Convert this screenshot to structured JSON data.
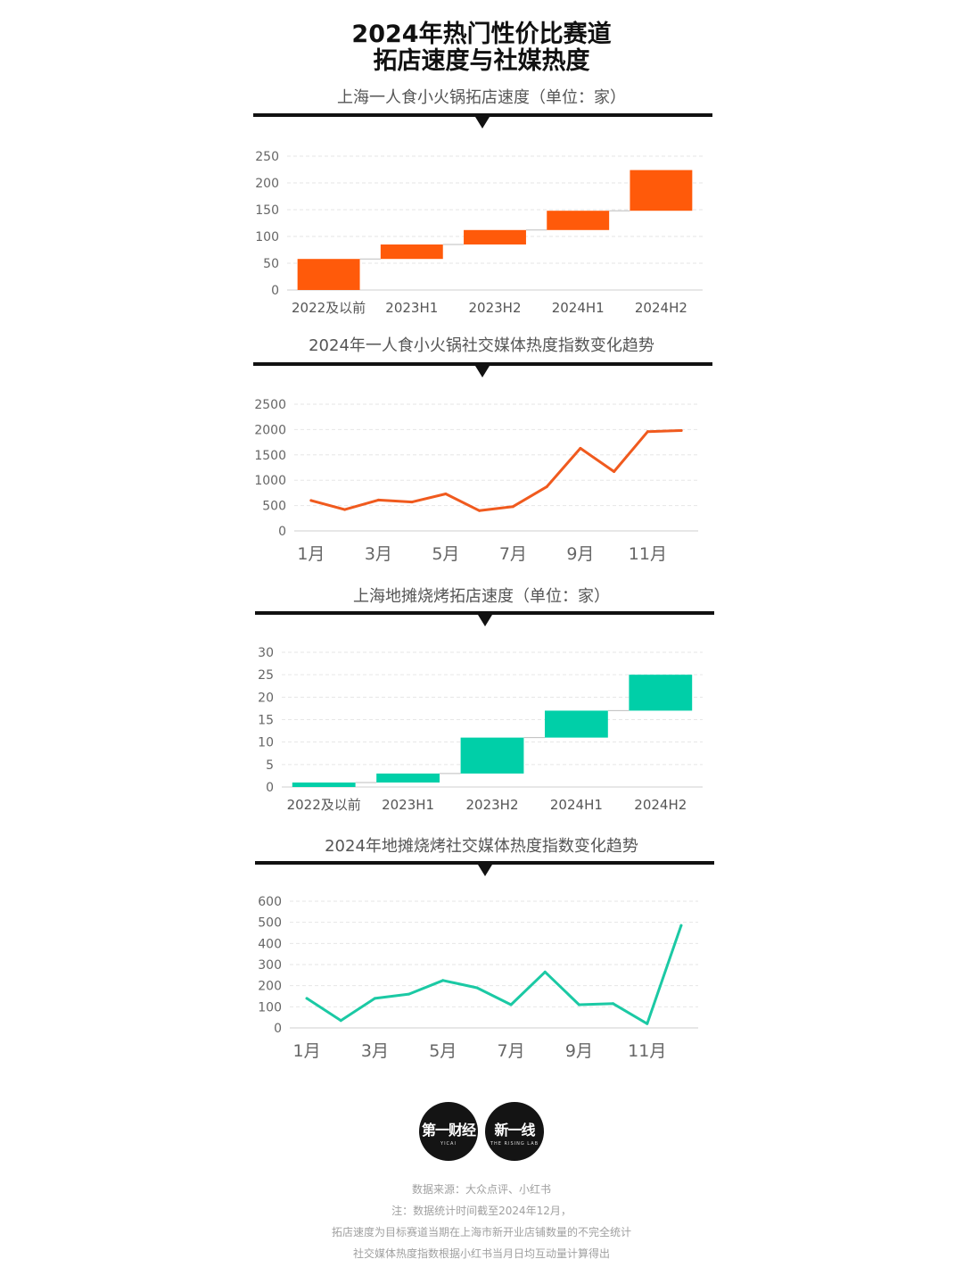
{
  "page": {
    "title_line1": "2024年热门性价比赛道",
    "title_line2": "拓店速度与社媒热度"
  },
  "charts": [
    {
      "title": "上海一人食小火锅拓店速度（单位：家）",
      "type": "waterfall",
      "color": "#FF5A0A",
      "categories": [
        "2022及以前",
        "2023H1",
        "2023H2",
        "2024H1",
        "2024H2"
      ],
      "increments": [
        58,
        27,
        27,
        36,
        76
      ],
      "ylim": [
        0,
        250
      ],
      "yticks": [
        0,
        50,
        100,
        150,
        200,
        250
      ]
    },
    {
      "title": "2024年一人食小火锅社交媒体热度指数变化趋势",
      "type": "line",
      "color": "#F05A1E",
      "x": [
        "1月",
        "2月",
        "3月",
        "4月",
        "5月",
        "6月",
        "7月",
        "8月",
        "9月",
        "10月",
        "11月",
        "12月"
      ],
      "xticklabels": [
        "1月",
        "3月",
        "5月",
        "7月",
        "9月",
        "11月"
      ],
      "values": [
        600,
        420,
        610,
        570,
        730,
        400,
        480,
        870,
        1630,
        1170,
        1960,
        1980
      ],
      "ylim": [
        0,
        2500
      ],
      "yticks": [
        0,
        500,
        1000,
        1500,
        2000,
        2500
      ]
    },
    {
      "title": "上海地摊烧烤拓店速度（单位：家）",
      "type": "waterfall",
      "color": "#00CFA8",
      "categories": [
        "2022及以前",
        "2023H1",
        "2023H2",
        "2024H1",
        "2024H2"
      ],
      "increments": [
        1,
        2,
        8,
        6,
        8
      ],
      "ylim": [
        0,
        30
      ],
      "yticks": [
        0,
        5,
        10,
        15,
        20,
        25,
        30
      ]
    },
    {
      "title": "2024年地摊烧烤社交媒体热度指数变化趋势",
      "type": "line",
      "color": "#1BC9A4",
      "x": [
        "1月",
        "2月",
        "3月",
        "4月",
        "5月",
        "6月",
        "7月",
        "8月",
        "9月",
        "10月",
        "11月",
        "12月"
      ],
      "xticklabels": [
        "1月",
        "3月",
        "5月",
        "7月",
        "9月",
        "11月"
      ],
      "values": [
        140,
        35,
        140,
        160,
        225,
        190,
        110,
        265,
        110,
        115,
        20,
        485
      ],
      "ylim": [
        0,
        600
      ],
      "yticks": [
        0,
        100,
        200,
        300,
        400,
        500,
        600
      ]
    }
  ],
  "logos": {
    "logo1_main": "第一财经",
    "logo1_sub": "YICAI",
    "logo2_main": "新一线",
    "logo2_sub": "THE RISING LAB"
  },
  "footer": {
    "line1": "数据来源：大众点评、小红书",
    "line2": "注：数据统计时间截至2024年12月，",
    "line3": "拓店速度为目标赛道当期在上海市新开业店铺数量的不完全统计",
    "line4": "社交媒体热度指数根据小红书当月日均互动量计算得出"
  }
}
